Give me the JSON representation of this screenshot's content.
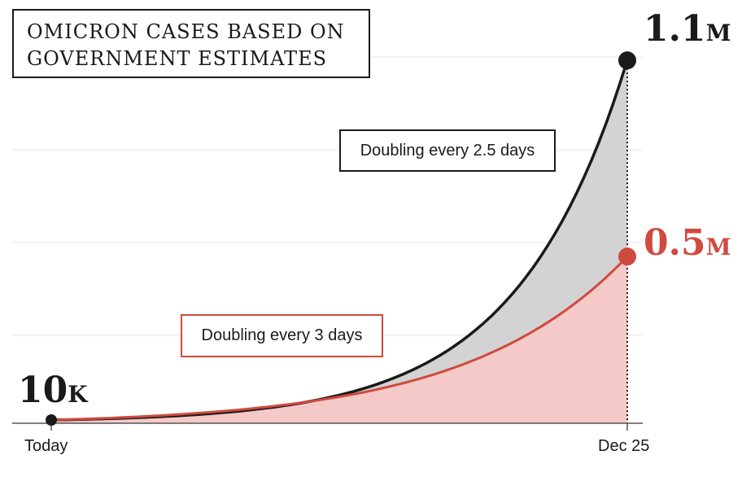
{
  "title_lines": [
    "OMICRON CASES BASED ON",
    "GOVERNMENT ESTIMATES"
  ],
  "annotations": {
    "fast": "Doubling every 2.5 days",
    "slow": "Doubling every 3 days"
  },
  "labels": {
    "start": {
      "number": "10",
      "unit": "K"
    },
    "fast_end": {
      "number": "1.1",
      "unit": "M"
    },
    "slow_end": {
      "number": "0.5",
      "unit": "M"
    }
  },
  "colors": {
    "fast_line": "#1a1a1a",
    "fast_fill": "#d3d3d3",
    "slow_line": "#cf4a3f",
    "slow_fill": "#f4c9c7",
    "grid": "#e6e6e6"
  },
  "chart_data": {
    "type": "area",
    "x_ticks": [
      "Today",
      "Dec 25"
    ],
    "ylim": [
      0,
      1200000
    ],
    "grid": true,
    "series": [
      {
        "key": "fast",
        "start_value": 10000,
        "end_value": 1100000
      },
      {
        "key": "slow",
        "start_value": 10000,
        "end_value": 500000
      }
    ]
  }
}
